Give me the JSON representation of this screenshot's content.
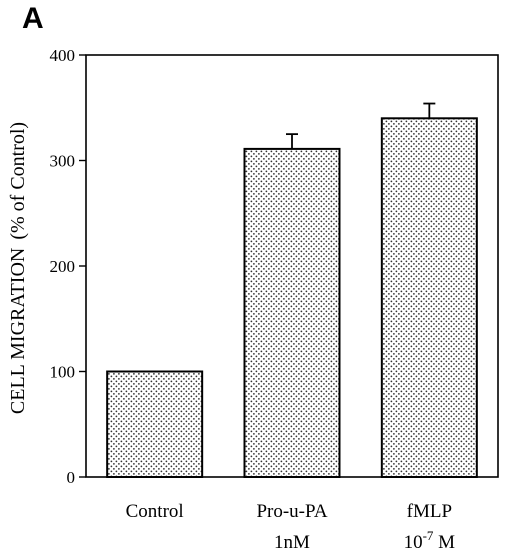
{
  "panel_label": "A",
  "chart_data": {
    "type": "bar",
    "categories": [
      {
        "line1": "Control",
        "line2": "",
        "line2_sup": "",
        "line2_post": ""
      },
      {
        "line1": "Pro-u-PA",
        "line2": "1nM",
        "line2_sup": "",
        "line2_post": ""
      },
      {
        "line1": "fMLP",
        "line2": "10",
        "line2_sup": "-7",
        "line2_post": " M"
      }
    ],
    "values": [
      100,
      311,
      340
    ],
    "errors": [
      0,
      14,
      14
    ],
    "ylabel": "CELL MIGRATION",
    "ylabel_unit": "(% of Control)",
    "ylim": [
      0,
      400
    ],
    "yticks": [
      0,
      100,
      200,
      300,
      400
    ],
    "bar_pattern": "dotted",
    "colors": {
      "bar_fill": "#ffffff",
      "dot": "#333333",
      "stroke": "#000000"
    }
  }
}
